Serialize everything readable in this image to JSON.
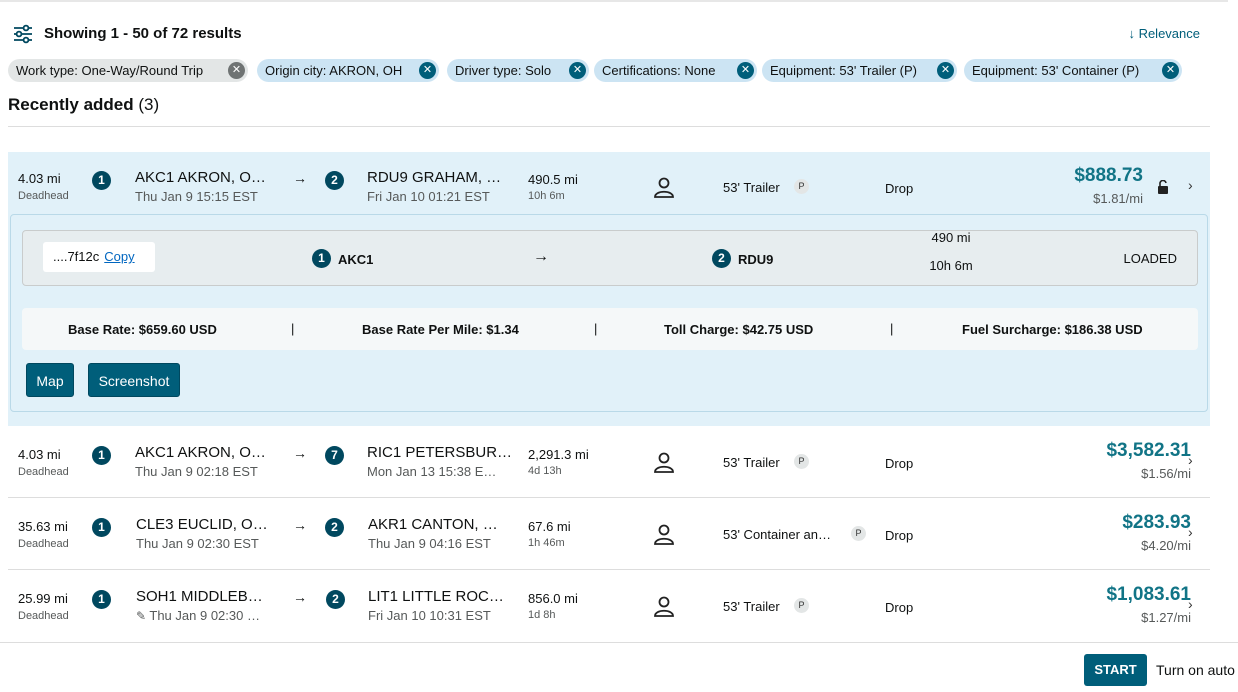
{
  "header": {
    "results_text": "Showing 1 - 50 of 72 results",
    "sort_label": "Relevance",
    "sort_arrow": "↓"
  },
  "filters": [
    {
      "label": "Work type: One-Way/Round Trip",
      "style": "gray"
    },
    {
      "label": "Origin city: AKRON, OH",
      "style": "blue"
    },
    {
      "label": "Driver type: Solo",
      "style": "blue"
    },
    {
      "label": "Certifications: None",
      "style": "blue"
    },
    {
      "label": "Equipment: 53' Trailer (P)",
      "style": "blue"
    },
    {
      "label": "Equipment: 53' Container (P)",
      "style": "blue"
    }
  ],
  "section": {
    "title": "Recently added",
    "count": "(3)"
  },
  "loads": [
    {
      "deadhead": "4.03 mi",
      "deadhead_label": "Deadhead",
      "origin_stop": "1",
      "origin_city": "AKC1 AKRON, O…",
      "origin_time": "Thu Jan 9 15:15 EST",
      "arrow": "→",
      "dest_stop": "2",
      "dest_city": "RDU9 GRAHAM, …",
      "dest_time": "Fri Jan 10 01:21 EST",
      "distance": "490.5 mi",
      "duration": "10h 6m",
      "equipment": "53' Trailer",
      "badge": "P",
      "drop": "Drop",
      "price": "$888.73",
      "per_mile": "$1.81/mi",
      "chevron": "›"
    },
    {
      "deadhead": "4.03 mi",
      "deadhead_label": "Deadhead",
      "origin_stop": "1",
      "origin_city": "AKC1 AKRON, O…",
      "origin_time": "Thu Jan 9 02:18 EST",
      "arrow": "→",
      "dest_stop": "7",
      "dest_city": "RIC1 PETERSBUR…",
      "dest_time": "Mon Jan 13 15:38 E…",
      "distance": "2,291.3 mi",
      "duration": "4d 13h",
      "equipment": "53' Trailer",
      "badge": "P",
      "drop": "Drop",
      "price": "$3,582.31",
      "per_mile": "$1.56/mi",
      "chevron": "›"
    },
    {
      "deadhead": "35.63 mi",
      "deadhead_label": "Deadhead",
      "origin_stop": "1",
      "origin_city": "CLE3 EUCLID, O…",
      "origin_time": "Thu Jan 9 02:30 EST",
      "arrow": "→",
      "dest_stop": "2",
      "dest_city": "AKR1 CANTON, …",
      "dest_time": "Thu Jan 9 04:16 EST",
      "distance": "67.6 mi",
      "duration": "1h 46m",
      "equipment": "53' Container an…",
      "badge": "P",
      "drop": "Drop",
      "price": "$283.93",
      "per_mile": "$4.20/mi",
      "chevron": "›"
    },
    {
      "deadhead": "25.99 mi",
      "deadhead_label": "Deadhead",
      "origin_stop": "1",
      "origin_city": "SOH1 MIDDLEB…",
      "origin_time": "Thu Jan 9 02:30 …",
      "arrow": "→",
      "dest_stop": "2",
      "dest_city": "LIT1 LITTLE ROC…",
      "dest_time": "Fri Jan 10 10:31 EST",
      "distance": "856.0 mi",
      "duration": "1d 8h",
      "equipment": "53' Trailer",
      "badge": "P",
      "drop": "Drop",
      "price": "$1,083.61",
      "per_mile": "$1.27/mi",
      "chevron": "›"
    }
  ],
  "detail": {
    "load_id": "....7f12c",
    "copy_label": "Copy",
    "origin_stop": "1",
    "origin_code": "AKC1",
    "arrow": "→",
    "dest_stop": "2",
    "dest_code": "RDU9",
    "distance": "490 mi",
    "duration": "10h 6m",
    "status": "LOADED",
    "base_rate": "Base Rate: $659.60 USD",
    "base_rate_per_mile": "Base Rate Per Mile: $1.34",
    "toll_charge": "Toll Charge: $42.75 USD",
    "fuel_surcharge": "Fuel Surcharge: $186.38 USD",
    "separator": "|",
    "map_button": "Map",
    "screenshot_button": "Screenshot"
  },
  "footer": {
    "start_button": "START",
    "auto_label": "Turn on auto"
  },
  "colors": {
    "accent": "#005e7a",
    "price": "#117486",
    "chip_blue": "#cce4f3",
    "chip_gray": "#e3e6e6",
    "expanded_bg": "#e1f1f9"
  }
}
